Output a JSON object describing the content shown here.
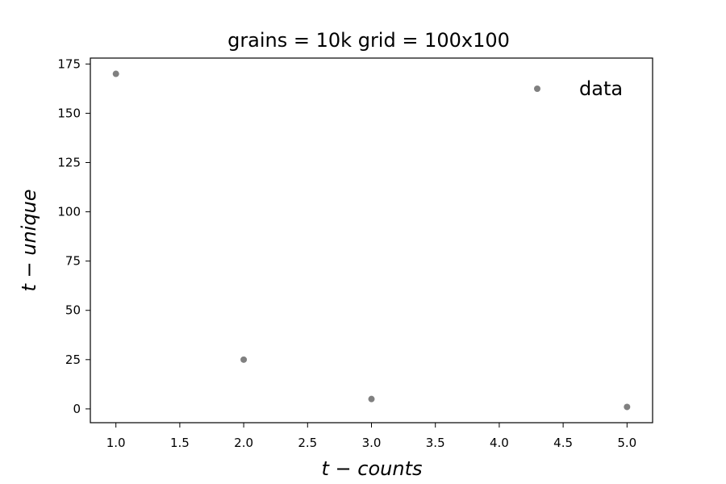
{
  "chart_data": {
    "type": "scatter",
    "title": "grains = 10k grid = 100x100",
    "xlabel": "t − counts",
    "ylabel": "t − unique",
    "xlim": [
      0.8,
      5.2
    ],
    "ylim": [
      -7,
      178
    ],
    "xticks": [
      1.0,
      1.5,
      2.0,
      2.5,
      3.0,
      3.5,
      4.0,
      4.5,
      5.0
    ],
    "xtick_labels": [
      "1.0",
      "1.5",
      "2.0",
      "2.5",
      "3.0",
      "3.5",
      "4.0",
      "4.5",
      "5.0"
    ],
    "yticks": [
      0,
      25,
      50,
      75,
      100,
      125,
      150,
      175
    ],
    "ytick_labels": [
      "0",
      "25",
      "50",
      "75",
      "100",
      "125",
      "150",
      "175"
    ],
    "grid": false,
    "legend_position": "top-right",
    "series": [
      {
        "name": "data",
        "color": "#808080",
        "x": [
          1,
          2,
          3,
          5
        ],
        "y": [
          170,
          25,
          5,
          1
        ]
      }
    ]
  }
}
